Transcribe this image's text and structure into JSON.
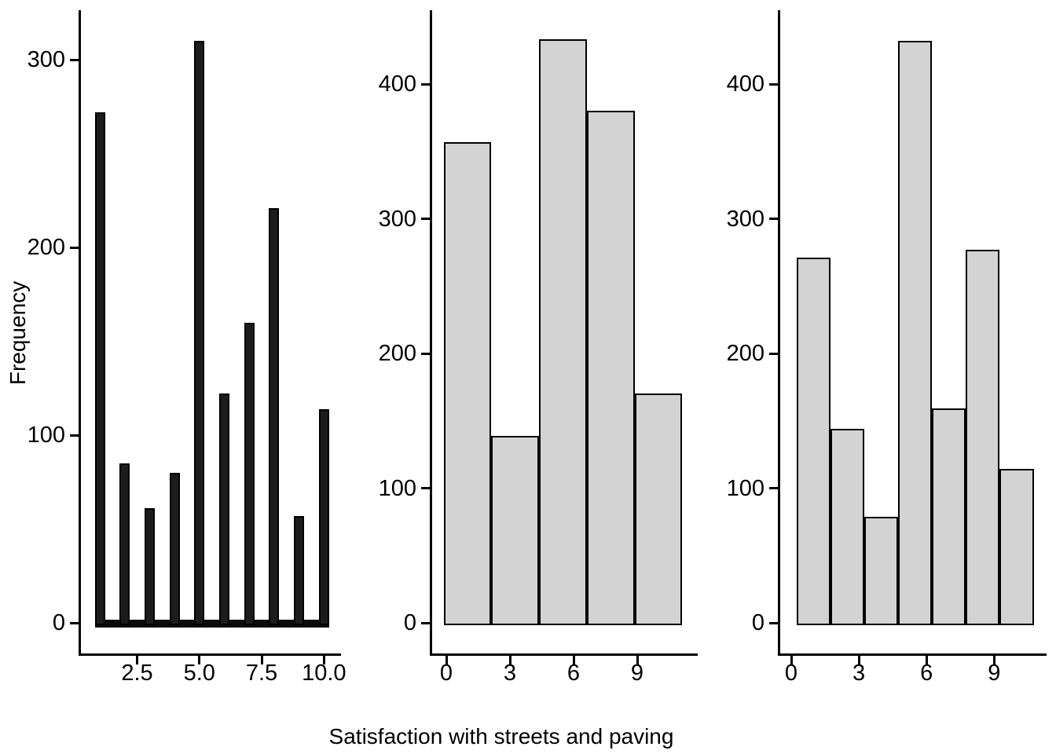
{
  "figure": {
    "xlabel": "Satisfaction with streets and paving",
    "ylabel": "Frequency",
    "background_color": "#ffffff",
    "text_color": "#000000",
    "bar_dark_fill": "#1c1c1c",
    "bar_light_fill": "#d3d3d3",
    "bar_stroke": "#000000"
  },
  "chart_data": [
    {
      "type": "bar",
      "panel": "left",
      "title": "",
      "xlabel": "Satisfaction with streets and paving",
      "ylabel": "Frequency",
      "style": "narrow-dark-bars-histogram",
      "bar_fill": "#1c1c1c",
      "bar_stroke": "#000000",
      "x": [
        1,
        2,
        3,
        4,
        5,
        6,
        7,
        8,
        9,
        10
      ],
      "values": [
        272,
        85,
        61,
        80,
        310,
        122,
        160,
        221,
        57,
        114
      ],
      "bar_width_units": 0.31,
      "zero_count_baseline": true,
      "xticks": [
        2.5,
        5.0,
        7.5,
        10.0
      ],
      "xtick_labels": [
        "2.5",
        "5.0",
        "7.5",
        "10.0"
      ],
      "yticks": [
        0,
        100,
        200,
        300
      ],
      "ytick_labels": [
        "0",
        "100",
        "200",
        "300"
      ],
      "ylim": [
        0,
        326
      ],
      "grid": false,
      "legend": null
    },
    {
      "type": "bar",
      "panel": "middle",
      "title": "",
      "xlabel": "Satisfaction with streets and paving",
      "ylabel": "",
      "style": "wide-gray-bins-histogram",
      "bar_fill": "#d3d3d3",
      "bar_stroke": "#000000",
      "bin_edges": [
        -0.125,
        2.125,
        4.375,
        6.625,
        8.875,
        11.125
      ],
      "values": [
        357,
        139,
        433,
        380,
        170
      ],
      "xticks": [
        0,
        3,
        6,
        9
      ],
      "xtick_labels": [
        "0",
        "3",
        "6",
        "9"
      ],
      "yticks": [
        0,
        100,
        200,
        300,
        400
      ],
      "ytick_labels": [
        "0",
        "100",
        "200",
        "300",
        "400"
      ],
      "ylim": [
        0,
        455
      ],
      "grid": false,
      "legend": null
    },
    {
      "type": "bar",
      "panel": "right",
      "title": "",
      "xlabel": "Satisfaction with streets and paving",
      "ylabel": "",
      "style": "medium-gray-bins-histogram",
      "bar_fill": "#d3d3d3",
      "bar_stroke": "#000000",
      "bin_edges": [
        0.25,
        1.75,
        3.25,
        4.75,
        6.25,
        7.75,
        9.25,
        10.75
      ],
      "values": [
        271,
        144,
        79,
        432,
        159,
        277,
        114
      ],
      "xticks": [
        0,
        3,
        6,
        9
      ],
      "xtick_labels": [
        "0",
        "3",
        "6",
        "9"
      ],
      "yticks": [
        0,
        100,
        200,
        300,
        400
      ],
      "ytick_labels": [
        "0",
        "100",
        "200",
        "300",
        "400"
      ],
      "ylim": [
        0,
        455
      ],
      "grid": false,
      "legend": null
    }
  ]
}
